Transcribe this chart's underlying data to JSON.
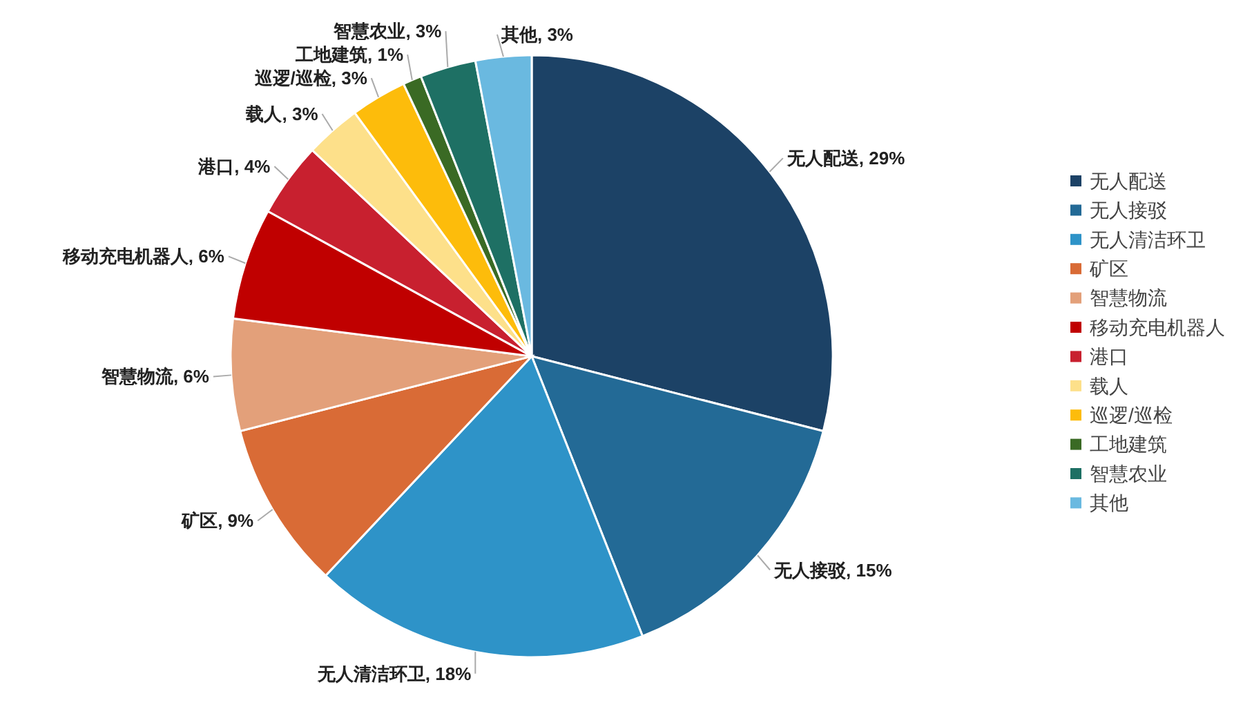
{
  "chart_data": {
    "type": "pie",
    "legend": "right",
    "categories": [
      "无人配送",
      "无人接驳",
      "无人清洁环卫",
      "矿区",
      "智慧物流",
      "移动充电机器人",
      "港口",
      "载人",
      "巡逻/巡检",
      "工地建筑",
      "智慧农业",
      "其他"
    ],
    "values": [
      29,
      15,
      18,
      9,
      6,
      6,
      4,
      3,
      3,
      1,
      3,
      3
    ],
    "colors": [
      "#1c4266",
      "#236a96",
      "#2e93c8",
      "#d96b36",
      "#e3a07a",
      "#c00000",
      "#c8202f",
      "#fde08a",
      "#fdbc0b",
      "#3a6a24",
      "#1e7064",
      "#6ab9e0"
    ],
    "value_labels": [
      "无人配送, 29%",
      "无人接驳, 15%",
      "无人清洁环卫, 18%",
      "矿区, 9%",
      "智慧物流, 6%",
      "移动充电机器人, 6%",
      "港口, 4%",
      "载人, 3%",
      "巡逻/巡检, 3%",
      "工地建筑, 1%",
      "智慧农业, 3%",
      "其他, 3%"
    ]
  }
}
